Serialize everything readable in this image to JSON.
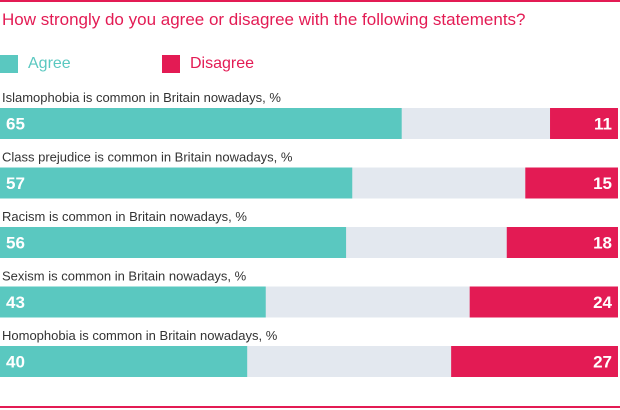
{
  "chart_data": {
    "type": "bar",
    "stacked": true,
    "orientation": "horizontal",
    "title": "How strongly do you agree or disagree with the following statements?",
    "categories": [
      "Islamophobia is common in Britain nowadays, %",
      "Class prejudice is common in Britain nowadays, %",
      "Racism is common in Britain nowadays, %",
      "Sexism is common in Britain nowadays, %",
      "Homophobia is common in Britain nowadays, %"
    ],
    "series": [
      {
        "name": "Agree",
        "values": [
          65,
          57,
          56,
          43,
          40
        ],
        "color": "#5ac8c0"
      },
      {
        "name": "Disagree",
        "values": [
          11,
          15,
          18,
          24,
          27
        ],
        "color": "#e31b54"
      }
    ],
    "remainder_color": "#e3e8ef",
    "xlim": [
      0,
      100
    ],
    "legend_position": "top-left"
  },
  "colors": {
    "title": "#e31b54",
    "rule": "#e31b54"
  }
}
